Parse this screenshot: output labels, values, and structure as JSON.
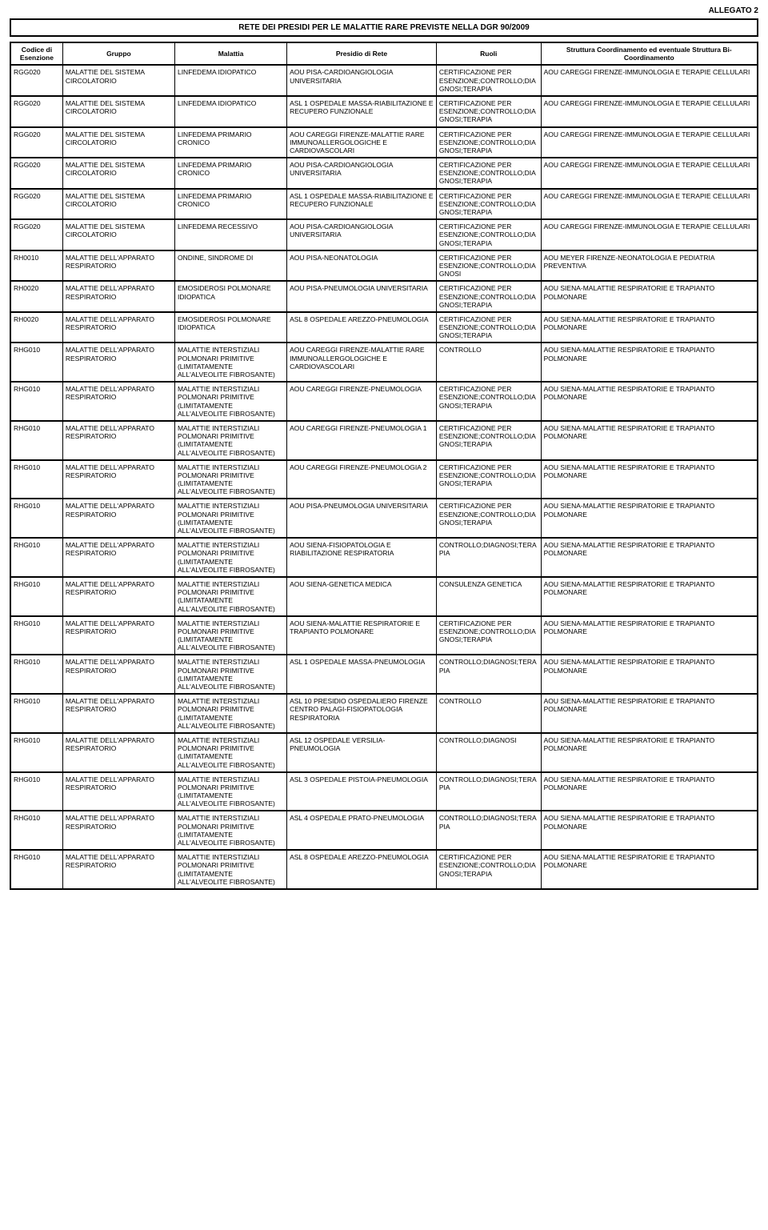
{
  "header": {
    "allegato": "ALLEGATO 2",
    "title": "RETE DEI PRESIDI PER LE MALATTIE RARE PREVISTE NELLA DGR 90/2009"
  },
  "table": {
    "columns": [
      {
        "label": "Codice di Esenzione",
        "width": "7%"
      },
      {
        "label": "Gruppo",
        "width": "15%"
      },
      {
        "label": "Malattia",
        "width": "15%"
      },
      {
        "label": "Presidio di Rete",
        "width": "20%"
      },
      {
        "label": "Ruoli",
        "width": "14%"
      },
      {
        "label": "Struttura Coordinamento ed eventuale Struttura Bi-Coordinamento",
        "width": "29%"
      }
    ],
    "rows": [
      [
        "RGG020",
        "MALATTIE DEL SISTEMA CIRCOLATORIO",
        "LINFEDEMA IDIOPATICO",
        "AOU PISA-CARDIOANGIOLOGIA UNIVERSITARIA",
        "CERTIFICAZIONE PER ESENZIONE;CONTROLLO;DIAGNOSI;TERAPIA",
        "AOU CAREGGI FIRENZE-IMMUNOLOGIA E TERAPIE CELLULARI"
      ],
      [
        "RGG020",
        "MALATTIE DEL SISTEMA CIRCOLATORIO",
        "LINFEDEMA IDIOPATICO",
        "ASL 1 OSPEDALE MASSA-RIABILITAZIONE E RECUPERO FUNZIONALE",
        "CERTIFICAZIONE PER ESENZIONE;CONTROLLO;DIAGNOSI;TERAPIA",
        "AOU CAREGGI FIRENZE-IMMUNOLOGIA E TERAPIE CELLULARI"
      ],
      [
        "RGG020",
        "MALATTIE DEL SISTEMA CIRCOLATORIO",
        "LINFEDEMA PRIMARIO CRONICO",
        "AOU CAREGGI FIRENZE-MALATTIE RARE IMMUNOALLERGOLOGICHE E CARDIOVASCOLARI",
        "CERTIFICAZIONE PER ESENZIONE;CONTROLLO;DIAGNOSI;TERAPIA",
        "AOU CAREGGI FIRENZE-IMMUNOLOGIA E TERAPIE CELLULARI"
      ],
      [
        "RGG020",
        "MALATTIE DEL SISTEMA CIRCOLATORIO",
        "LINFEDEMA PRIMARIO CRONICO",
        "AOU PISA-CARDIOANGIOLOGIA UNIVERSITARIA",
        "CERTIFICAZIONE PER ESENZIONE;CONTROLLO;DIAGNOSI;TERAPIA",
        "AOU CAREGGI FIRENZE-IMMUNOLOGIA E TERAPIE CELLULARI"
      ],
      [
        "RGG020",
        "MALATTIE DEL SISTEMA CIRCOLATORIO",
        "LINFEDEMA PRIMARIO CRONICO",
        "ASL 1 OSPEDALE MASSA-RIABILITAZIONE E RECUPERO FUNZIONALE",
        "CERTIFICAZIONE PER ESENZIONE;CONTROLLO;DIAGNOSI;TERAPIA",
        "AOU CAREGGI FIRENZE-IMMUNOLOGIA E TERAPIE CELLULARI"
      ],
      [
        "RGG020",
        "MALATTIE DEL SISTEMA CIRCOLATORIO",
        "LINFEDEMA RECESSIVO",
        "AOU PISA-CARDIOANGIOLOGIA UNIVERSITARIA",
        "CERTIFICAZIONE PER ESENZIONE;CONTROLLO;DIAGNOSI;TERAPIA",
        "AOU CAREGGI FIRENZE-IMMUNOLOGIA E TERAPIE CELLULARI"
      ],
      [
        "RH0010",
        "MALATTIE DELL'APPARATO RESPIRATORIO",
        "ONDINE, SINDROME DI",
        "AOU PISA-NEONATOLOGIA",
        "CERTIFICAZIONE PER ESENZIONE;CONTROLLO;DIAGNOSI",
        "AOU MEYER FIRENZE-NEONATOLOGIA E PEDIATRIA PREVENTIVA"
      ],
      [
        "RH0020",
        "MALATTIE DELL'APPARATO RESPIRATORIO",
        "EMOSIDEROSI POLMONARE IDIOPATICA",
        "AOU PISA-PNEUMOLOGIA UNIVERSITARIA",
        "CERTIFICAZIONE PER ESENZIONE;CONTROLLO;DIAGNOSI;TERAPIA",
        "AOU SIENA-MALATTIE RESPIRATORIE E TRAPIANTO POLMONARE"
      ],
      [
        "RH0020",
        "MALATTIE DELL'APPARATO RESPIRATORIO",
        "EMOSIDEROSI POLMONARE IDIOPATICA",
        "ASL 8 OSPEDALE AREZZO-PNEUMOLOGIA",
        "CERTIFICAZIONE PER ESENZIONE;CONTROLLO;DIAGNOSI;TERAPIA",
        "AOU SIENA-MALATTIE RESPIRATORIE E TRAPIANTO POLMONARE"
      ],
      [
        "RHG010",
        "MALATTIE DELL'APPARATO RESPIRATORIO",
        "MALATTIE INTERSTIZIALI POLMONARI PRIMITIVE (LIMITATAMENTE ALL'ALVEOLITE FIBROSANTE)",
        "AOU CAREGGI FIRENZE-MALATTIE RARE IMMUNOALLERGOLOGICHE E CARDIOVASCOLARI",
        "CONTROLLO",
        "AOU SIENA-MALATTIE RESPIRATORIE E TRAPIANTO POLMONARE"
      ],
      [
        "RHG010",
        "MALATTIE DELL'APPARATO RESPIRATORIO",
        "MALATTIE INTERSTIZIALI POLMONARI PRIMITIVE (LIMITATAMENTE ALL'ALVEOLITE FIBROSANTE)",
        "AOU CAREGGI FIRENZE-PNEUMOLOGIA",
        "CERTIFICAZIONE PER ESENZIONE;CONTROLLO;DIAGNOSI;TERAPIA",
        "AOU SIENA-MALATTIE RESPIRATORIE E TRAPIANTO POLMONARE"
      ],
      [
        "RHG010",
        "MALATTIE DELL'APPARATO RESPIRATORIO",
        "MALATTIE INTERSTIZIALI POLMONARI PRIMITIVE (LIMITATAMENTE ALL'ALVEOLITE FIBROSANTE)",
        "AOU CAREGGI FIRENZE-PNEUMOLOGIA 1",
        "CERTIFICAZIONE PER ESENZIONE;CONTROLLO;DIAGNOSI;TERAPIA",
        "AOU SIENA-MALATTIE RESPIRATORIE E TRAPIANTO POLMONARE"
      ],
      [
        "RHG010",
        "MALATTIE DELL'APPARATO RESPIRATORIO",
        "MALATTIE INTERSTIZIALI POLMONARI PRIMITIVE (LIMITATAMENTE ALL'ALVEOLITE FIBROSANTE)",
        "AOU CAREGGI FIRENZE-PNEUMOLOGIA 2",
        "CERTIFICAZIONE PER ESENZIONE;CONTROLLO;DIAGNOSI;TERAPIA",
        "AOU SIENA-MALATTIE RESPIRATORIE E TRAPIANTO POLMONARE"
      ],
      [
        "RHG010",
        "MALATTIE DELL'APPARATO RESPIRATORIO",
        "MALATTIE INTERSTIZIALI POLMONARI PRIMITIVE (LIMITATAMENTE ALL'ALVEOLITE FIBROSANTE)",
        "AOU PISA-PNEUMOLOGIA UNIVERSITARIA",
        "CERTIFICAZIONE PER ESENZIONE;CONTROLLO;DIAGNOSI;TERAPIA",
        "AOU SIENA-MALATTIE RESPIRATORIE E TRAPIANTO POLMONARE"
      ],
      [
        "RHG010",
        "MALATTIE DELL'APPARATO RESPIRATORIO",
        "MALATTIE INTERSTIZIALI POLMONARI PRIMITIVE (LIMITATAMENTE ALL'ALVEOLITE FIBROSANTE)",
        "AOU SIENA-FISIOPATOLOGIA E RIABILITAZIONE RESPIRATORIA",
        "CONTROLLO;DIAGNOSI;TERAPIA",
        "AOU SIENA-MALATTIE RESPIRATORIE E TRAPIANTO POLMONARE"
      ],
      [
        "RHG010",
        "MALATTIE DELL'APPARATO RESPIRATORIO",
        "MALATTIE INTERSTIZIALI POLMONARI PRIMITIVE (LIMITATAMENTE ALL'ALVEOLITE FIBROSANTE)",
        "AOU SIENA-GENETICA MEDICA",
        "CONSULENZA GENETICA",
        "AOU SIENA-MALATTIE RESPIRATORIE E TRAPIANTO POLMONARE"
      ],
      [
        "RHG010",
        "MALATTIE DELL'APPARATO RESPIRATORIO",
        "MALATTIE INTERSTIZIALI POLMONARI PRIMITIVE (LIMITATAMENTE ALL'ALVEOLITE FIBROSANTE)",
        "AOU SIENA-MALATTIE RESPIRATORIE E TRAPIANTO POLMONARE",
        "CERTIFICAZIONE PER ESENZIONE;CONTROLLO;DIAGNOSI;TERAPIA",
        "AOU SIENA-MALATTIE RESPIRATORIE E TRAPIANTO POLMONARE"
      ],
      [
        "RHG010",
        "MALATTIE DELL'APPARATO RESPIRATORIO",
        "MALATTIE INTERSTIZIALI POLMONARI PRIMITIVE (LIMITATAMENTE ALL'ALVEOLITE FIBROSANTE)",
        "ASL 1 OSPEDALE MASSA-PNEUMOLOGIA",
        "CONTROLLO;DIAGNOSI;TERAPIA",
        "AOU SIENA-MALATTIE RESPIRATORIE E TRAPIANTO POLMONARE"
      ],
      [
        "RHG010",
        "MALATTIE DELL'APPARATO RESPIRATORIO",
        "MALATTIE INTERSTIZIALI POLMONARI PRIMITIVE (LIMITATAMENTE ALL'ALVEOLITE FIBROSANTE)",
        "ASL 10 PRESIDIO OSPEDALIERO FIRENZE CENTRO PALAGI-FISIOPATOLOGIA RESPIRATORIA",
        "CONTROLLO",
        "AOU SIENA-MALATTIE RESPIRATORIE E TRAPIANTO POLMONARE"
      ],
      [
        "RHG010",
        "MALATTIE DELL'APPARATO RESPIRATORIO",
        "MALATTIE INTERSTIZIALI POLMONARI PRIMITIVE (LIMITATAMENTE ALL'ALVEOLITE FIBROSANTE)",
        "ASL 12 OSPEDALE VERSILIA-PNEUMOLOGIA",
        "CONTROLLO;DIAGNOSI",
        "AOU SIENA-MALATTIE RESPIRATORIE E TRAPIANTO POLMONARE"
      ],
      [
        "RHG010",
        "MALATTIE DELL'APPARATO RESPIRATORIO",
        "MALATTIE INTERSTIZIALI POLMONARI PRIMITIVE (LIMITATAMENTE ALL'ALVEOLITE FIBROSANTE)",
        "ASL 3 OSPEDALE PISTOIA-PNEUMOLOGIA",
        "CONTROLLO;DIAGNOSI;TERAPIA",
        "AOU SIENA-MALATTIE RESPIRATORIE E TRAPIANTO POLMONARE"
      ],
      [
        "RHG010",
        "MALATTIE DELL'APPARATO RESPIRATORIO",
        "MALATTIE INTERSTIZIALI POLMONARI PRIMITIVE (LIMITATAMENTE ALL'ALVEOLITE FIBROSANTE)",
        "ASL 4 OSPEDALE PRATO-PNEUMOLOGIA",
        "CONTROLLO;DIAGNOSI;TERAPIA",
        "AOU SIENA-MALATTIE RESPIRATORIE E TRAPIANTO POLMONARE"
      ],
      [
        "RHG010",
        "MALATTIE DELL'APPARATO RESPIRATORIO",
        "MALATTIE INTERSTIZIALI POLMONARI PRIMITIVE (LIMITATAMENTE ALL'ALVEOLITE FIBROSANTE)",
        "ASL 8 OSPEDALE AREZZO-PNEUMOLOGIA",
        "CERTIFICAZIONE PER ESENZIONE;CONTROLLO;DIAGNOSI;TERAPIA",
        "AOU SIENA-MALATTIE RESPIRATORIE E TRAPIANTO POLMONARE"
      ]
    ]
  }
}
